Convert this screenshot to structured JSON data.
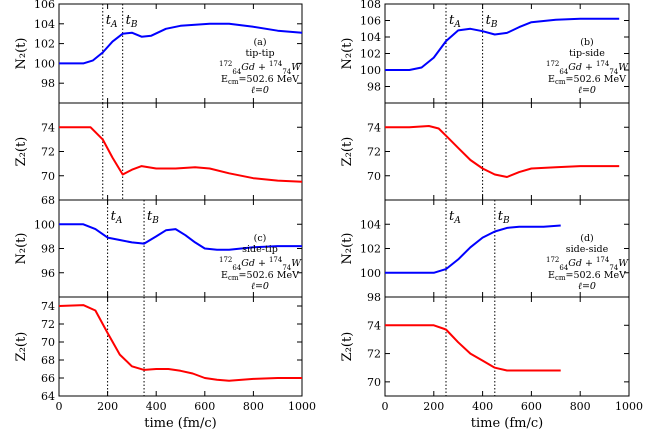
{
  "chart_data": [
    {
      "type": "line",
      "label": "(a)",
      "ylabel": "N2(t)",
      "annot": [
        "tip-tip",
        "172/64 Gd + 174/74 W",
        "Ecm=502.6 MeV",
        "ℓ=0"
      ],
      "ylim": [
        96,
        106
      ],
      "yticks": [
        98,
        100,
        102,
        104,
        106
      ],
      "xlim": [
        0,
        1000
      ],
      "xticks": [
        0,
        200,
        400,
        600,
        800,
        1000
      ],
      "show_xticklabels": false,
      "vlines": [
        {
          "name": "tA",
          "x": 180
        },
        {
          "name": "tB",
          "x": 262
        }
      ],
      "color": "#0000ff",
      "x": [
        0,
        100,
        140,
        180,
        220,
        262,
        300,
        340,
        380,
        440,
        500,
        560,
        620,
        700,
        800,
        900,
        1000
      ],
      "y": [
        100,
        100,
        100.3,
        101.1,
        102.2,
        103,
        103.1,
        102.7,
        102.8,
        103.5,
        103.8,
        103.9,
        104,
        104,
        103.7,
        103.3,
        103.1
      ]
    },
    {
      "type": "line",
      "label": "",
      "ylabel": "Z2(t)",
      "annot": [],
      "ylim": [
        68,
        76
      ],
      "yticks": [
        68,
        70,
        72,
        74
      ],
      "xlim": [
        0,
        1000
      ],
      "xticks": [
        0,
        200,
        400,
        600,
        800,
        1000
      ],
      "show_xticklabels": false,
      "vlines": [
        {
          "name": "tA",
          "x": 180
        },
        {
          "name": "tB",
          "x": 262
        }
      ],
      "color": "#ff0000",
      "x": [
        0,
        80,
        130,
        180,
        220,
        262,
        300,
        340,
        400,
        480,
        560,
        620,
        700,
        800,
        900,
        1000
      ],
      "y": [
        74,
        74,
        74,
        73,
        71.5,
        70.1,
        70.5,
        70.8,
        70.6,
        70.6,
        70.7,
        70.6,
        70.2,
        69.8,
        69.6,
        69.5
      ]
    },
    {
      "type": "line",
      "label": "(b)",
      "ylabel": "N2(t)",
      "annot": [
        "tip-side",
        "172/64 Gd + 174/74 W",
        "Ecm=502.6 MeV",
        "ℓ=0"
      ],
      "ylim": [
        96,
        108
      ],
      "yticks": [
        98,
        100,
        102,
        104,
        106,
        108
      ],
      "xlim": [
        0,
        1000
      ],
      "xticks": [
        0,
        200,
        400,
        600,
        800,
        1000
      ],
      "show_xticklabels": false,
      "vlines": [
        {
          "name": "tA",
          "x": 250
        },
        {
          "name": "tB",
          "x": 400
        }
      ],
      "color": "#0000ff",
      "x": [
        0,
        100,
        150,
        200,
        250,
        300,
        350,
        400,
        450,
        500,
        550,
        600,
        700,
        800,
        960
      ],
      "y": [
        100,
        100,
        100.3,
        101.5,
        103.5,
        104.8,
        105,
        104.7,
        104.3,
        104.5,
        105.2,
        105.8,
        106.1,
        106.2,
        106.2
      ]
    },
    {
      "type": "line",
      "label": "",
      "ylabel": "Z2(t)",
      "annot": [],
      "ylim": [
        68,
        76
      ],
      "yticks": [
        70,
        72,
        74
      ],
      "xlim": [
        0,
        1000
      ],
      "xticks": [
        0,
        200,
        400,
        600,
        800,
        1000
      ],
      "show_xticklabels": false,
      "vlines": [
        {
          "name": "tA",
          "x": 250
        },
        {
          "name": "tB",
          "x": 400
        }
      ],
      "color": "#ff0000",
      "x": [
        0,
        100,
        180,
        220,
        250,
        300,
        350,
        400,
        450,
        500,
        550,
        600,
        700,
        800,
        960
      ],
      "y": [
        74,
        74,
        74.1,
        73.9,
        73.3,
        72.3,
        71.3,
        70.6,
        70.1,
        69.9,
        70.3,
        70.6,
        70.7,
        70.8,
        70.8
      ]
    },
    {
      "type": "line",
      "label": "(c)",
      "ylabel": "N2(t)",
      "annot": [
        "side-tip",
        "172/64 Gd + 174/74 W",
        "Ecm=502.6 MeV",
        "ℓ=0"
      ],
      "ylim": [
        94,
        102
      ],
      "yticks": [
        96,
        98,
        100
      ],
      "xlim": [
        0,
        1000
      ],
      "xticks": [
        0,
        200,
        400,
        600,
        800,
        1000
      ],
      "show_xticklabels": false,
      "vlines": [
        {
          "name": "tA",
          "x": 200
        },
        {
          "name": "tB",
          "x": 350
        }
      ],
      "color": "#0000ff",
      "x": [
        0,
        100,
        150,
        200,
        250,
        300,
        350,
        400,
        440,
        480,
        520,
        560,
        600,
        650,
        700,
        800,
        900,
        1000
      ],
      "y": [
        100,
        100,
        99.6,
        98.9,
        98.7,
        98.5,
        98.4,
        99,
        99.5,
        99.6,
        99.1,
        98.5,
        98,
        97.9,
        97.9,
        98.1,
        98.2,
        98.2
      ]
    },
    {
      "type": "line",
      "label": "",
      "ylabel": "Z2(t)",
      "annot": [],
      "ylim": [
        64,
        75
      ],
      "yticks": [
        64,
        66,
        68,
        70,
        72,
        74
      ],
      "xlim": [
        0,
        1000
      ],
      "xticks": [
        0,
        200,
        400,
        600,
        800,
        1000
      ],
      "show_xticklabels": true,
      "vlines": [
        {
          "name": "tA",
          "x": 200
        },
        {
          "name": "tB",
          "x": 350
        }
      ],
      "color": "#ff0000",
      "xlabel": "time (fm/c)",
      "x": [
        0,
        100,
        150,
        200,
        250,
        300,
        350,
        400,
        450,
        500,
        550,
        600,
        650,
        700,
        800,
        900,
        1000
      ],
      "y": [
        74,
        74.1,
        73.5,
        71,
        68.6,
        67.3,
        66.9,
        67,
        67,
        66.8,
        66.5,
        66,
        65.8,
        65.7,
        65.9,
        66,
        66
      ]
    },
    {
      "type": "line",
      "label": "(d)",
      "ylabel": "N2(t)",
      "annot": [
        "side-side",
        "172/64 Gd + 174/74 W",
        "Ecm=502.6 MeV",
        "ℓ=0"
      ],
      "ylim": [
        98,
        106
      ],
      "yticks": [
        98,
        100,
        102,
        104
      ],
      "xlim": [
        0,
        1000
      ],
      "xticks": [
        0,
        200,
        400,
        600,
        800,
        1000
      ],
      "show_xticklabels": false,
      "vlines": [
        {
          "name": "tA",
          "x": 250
        },
        {
          "name": "tB",
          "x": 450
        }
      ],
      "color": "#0000ff",
      "x": [
        0,
        100,
        200,
        250,
        300,
        350,
        400,
        450,
        500,
        550,
        600,
        650,
        720
      ],
      "y": [
        100,
        100,
        100,
        100.3,
        101.1,
        102.1,
        102.9,
        103.4,
        103.7,
        103.8,
        103.8,
        103.8,
        103.9
      ]
    },
    {
      "type": "line",
      "label": "",
      "ylabel": "Z2(t)",
      "annot": [],
      "ylim": [
        69,
        76
      ],
      "yticks": [
        70,
        72,
        74
      ],
      "xlim": [
        0,
        1000
      ],
      "xticks": [
        0,
        200,
        400,
        600,
        800,
        1000
      ],
      "show_xticklabels": true,
      "vlines": [
        {
          "name": "tA",
          "x": 250
        },
        {
          "name": "tB",
          "x": 450
        }
      ],
      "color": "#ff0000",
      "xlabel": "time (fm/c)",
      "x": [
        0,
        100,
        200,
        250,
        300,
        350,
        400,
        450,
        500,
        550,
        600,
        650,
        720
      ],
      "y": [
        74,
        74,
        74,
        73.7,
        72.8,
        72,
        71.5,
        71,
        70.8,
        70.8,
        70.8,
        70.8,
        70.8
      ]
    }
  ]
}
